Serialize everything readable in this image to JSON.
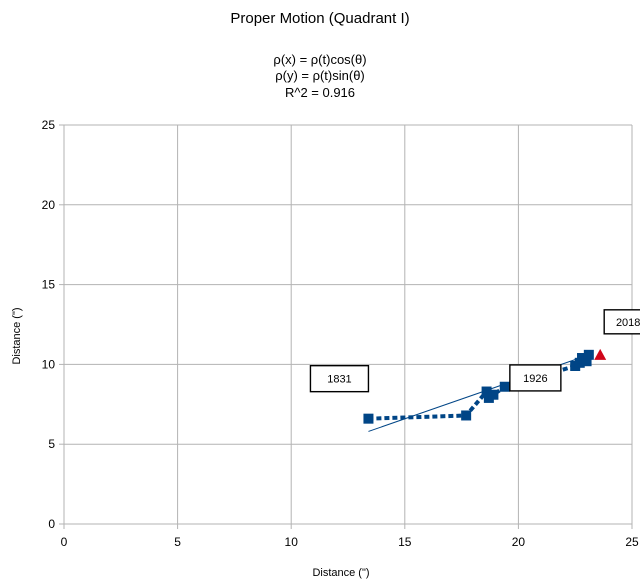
{
  "chart_data": {
    "type": "scatter",
    "title": "Proper Motion (Quadrant I)",
    "subtitle_lines": [
      "ρ(x) = ρ(t)cos(θ)",
      "ρ(y) = ρ(t)sin(θ)",
      "R^2 = 0.916"
    ],
    "xlabel": "Distance (\")",
    "ylabel": "Distance (\")",
    "xlim": [
      0,
      25
    ],
    "ylim": [
      0,
      25
    ],
    "xticks": [
      0,
      5,
      10,
      15,
      20,
      25
    ],
    "yticks": [
      0,
      5,
      10,
      15,
      20,
      25
    ],
    "grid": true,
    "series": [
      {
        "marker": "square",
        "color": "#004586",
        "line": "dotted",
        "points": [
          {
            "x": 13.4,
            "y": 6.6
          },
          {
            "x": 17.7,
            "y": 6.8
          },
          {
            "x": 18.6,
            "y": 8.3
          },
          {
            "x": 18.7,
            "y": 7.9
          },
          {
            "x": 18.9,
            "y": 8.1
          },
          {
            "x": 19.4,
            "y": 8.6
          },
          {
            "x": 22.5,
            "y": 9.9
          },
          {
            "x": 22.7,
            "y": 10.1
          },
          {
            "x": 22.8,
            "y": 10.4
          },
          {
            "x": 23.0,
            "y": 10.2
          },
          {
            "x": 23.1,
            "y": 10.6
          }
        ]
      },
      {
        "marker": "triangle",
        "color": "#d0061a",
        "line": "none",
        "points": [
          {
            "x": 23.6,
            "y": 10.6
          }
        ]
      }
    ],
    "trendline": {
      "color": "#004586",
      "from": {
        "x": 13.4,
        "y": 5.8
      },
      "to": {
        "x": 23.3,
        "y": 10.7
      }
    },
    "annotations": [
      {
        "text": "1831",
        "x": 13.4,
        "y": 6.6
      },
      {
        "text": "1926",
        "x": 18.7,
        "y": 7.9
      },
      {
        "text": "2018",
        "x": 23.6,
        "y": 10.6
      }
    ]
  }
}
